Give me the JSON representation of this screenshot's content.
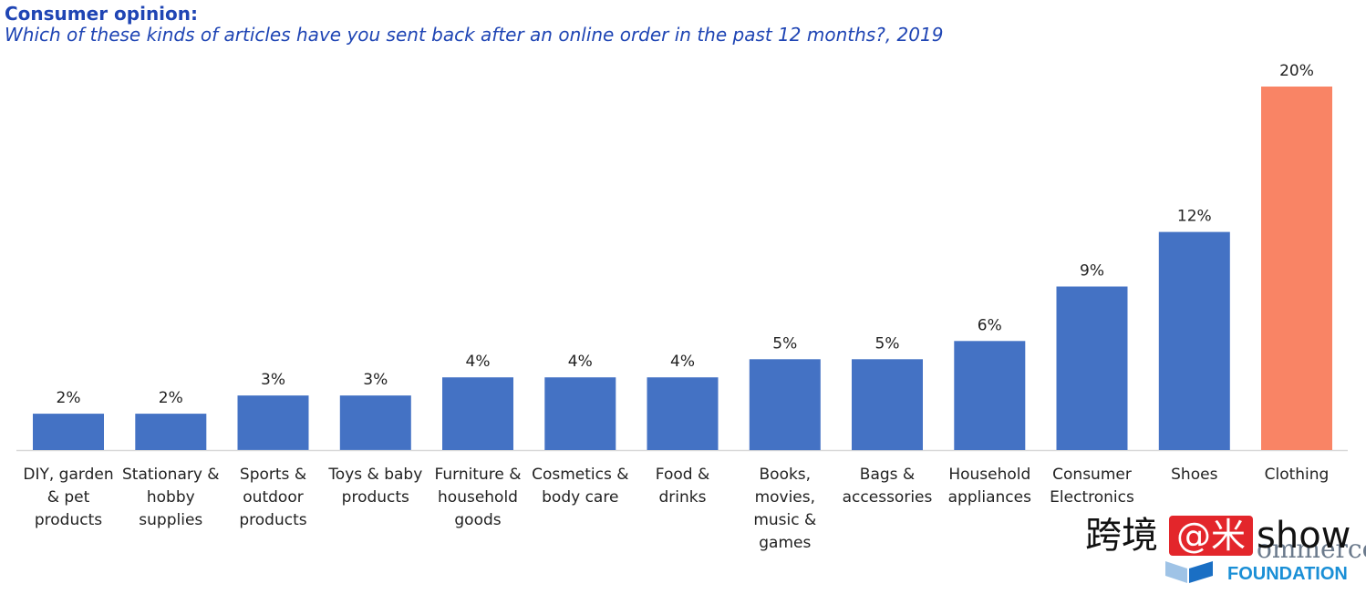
{
  "header": {
    "title": "Consumer opinion:",
    "subtitle": "Which of these kinds of articles have you sent back after an online order in the past 12 months?, 2019"
  },
  "colors": {
    "bar": "#4472c4",
    "highlight_bar": "#f98465",
    "title": "#1f45b4",
    "axis": "#d9d9d9",
    "text": "#222222"
  },
  "chart_data": {
    "type": "bar",
    "title": "Consumer opinion:",
    "subtitle": "Which of these kinds of articles have you sent back after an online order in the past 12 months?, 2019",
    "categories": [
      "DIY, garden & pet products",
      "Stationary & hobby supplies",
      "Sports & outdoor products",
      "Toys & baby products",
      "Furniture & household goods",
      "Cosmetics & body care",
      "Food & drinks",
      "Books, movies, music & games",
      "Bags & accessories",
      "Household appliances",
      "Consumer Electronics",
      "Shoes",
      "Clothing"
    ],
    "category_lines": [
      [
        "DIY, garden",
        "& pet",
        "products"
      ],
      [
        "Stationary &",
        "hobby",
        "supplies"
      ],
      [
        "Sports &",
        "outdoor",
        "products"
      ],
      [
        "Toys & baby",
        "products"
      ],
      [
        "Furniture &",
        "household",
        "goods"
      ],
      [
        "Cosmetics &",
        "body care"
      ],
      [
        "Food &",
        "drinks"
      ],
      [
        "Books,",
        "movies,",
        "music &",
        "games"
      ],
      [
        "Bags &",
        "accessories"
      ],
      [
        "Household",
        "appliances"
      ],
      [
        "Consumer",
        "Electronics"
      ],
      [
        "Shoes"
      ],
      [
        "Clothing"
      ]
    ],
    "values": [
      2,
      2,
      3,
      3,
      4,
      4,
      4,
      5,
      5,
      6,
      9,
      12,
      20
    ],
    "value_labels": [
      "2%",
      "2%",
      "3%",
      "3%",
      "4%",
      "4%",
      "4%",
      "5%",
      "5%",
      "6%",
      "9%",
      "12%",
      "20%"
    ],
    "highlight_index": 12,
    "ylim": [
      0,
      20
    ],
    "unit": "%",
    "grid": false,
    "legend": "none"
  },
  "watermark": {
    "cn": "跨境",
    "at": "@米",
    "show": "show",
    "commerce": "ommerce",
    "foundation": "FOUNDATION"
  }
}
